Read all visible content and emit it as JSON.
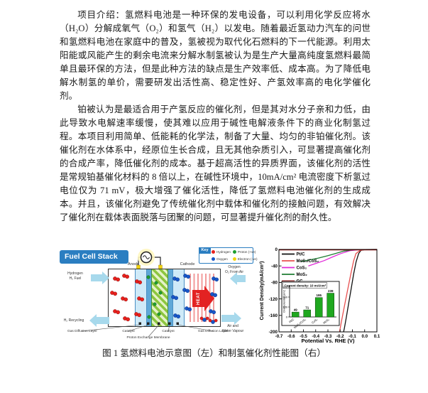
{
  "document": {
    "paragraphs": [
      "项目介绍：氢燃料电池是一种环保的发电设备，可以利用化学反应将水（H₂O）分解成氧气（O₂）和氢气（H₂）以发电。随着最近氢动力汽车的问世和氢燃料电池在家庭中的普及，氢被视为取代化石燃料的下一代能源。利用太阳能或风能产生的剩余电流来分解水制氢被认为是生产大量高纯度氢燃料最简单且最环保的方法，但是此种方法的缺点是生产效率低、成本高。为了降低电解水制氢的单价，需要研发出活性高、稳定性好、产氢效率高的电化学催化剂。",
      "铂被认为是最适合用于产氢反应的催化剂，但是其对水分子亲和力低，由此导致水电解速率缓慢，使其难以应用于碱性电解液条件下的商业化制氢过程。本项目利用简单、低能耗的化学法，制备了大量、均匀的非铂催化剂。该催化剂在水体系中，经原位生长合成，且无其他杂质引入，可显著提高催化剂的合成产率，降低催化剂的成本。基于超高活性的异质界面，该催化剂的活性是常规铂基催化材料的 8 倍以上，在碱性环境中，10mA/cm² 电流密度下析氢过电位仅为 71 mV，极大增强了催化活性，降低了氢燃料电池催化剂的生成成本。并且，该催化剂避免了传统催化剂中载体和催化剂的接触问题，有效解决了催化剂在载体表面脱落与团聚的问题，可显著提升催化剂的耐久性。"
    ],
    "caption": "图 1 氢燃料电池示意图（左）和制氢催化剂性能图（右）"
  },
  "diagram": {
    "title": "Fuel Cell Stack",
    "key_label": "Key",
    "key_items": [
      {
        "label": "Hydrogen",
        "color": "#e8211d"
      },
      {
        "label": "Oxygen",
        "color": "#1857c8"
      },
      {
        "label": "Proton (+ve)",
        "color": "#1e9e30"
      },
      {
        "label": "Electron (-ve)",
        "color": "#f2d410"
      }
    ],
    "labels": {
      "anode": "Anode",
      "cathode": "Cathode",
      "hydrogen_in_line1": "Hydrogen",
      "hydrogen_in_line2": "H₂ Fuel",
      "h2_recycling": "H₂ Recycling",
      "oxygen_in_line1": "Oxygen",
      "oxygen_in_line2": "O₂ From Air",
      "air_out_line1": "Air and",
      "air_out_line2": "Water Vapour",
      "heat": "HEAT",
      "gdl_left": "Gas Diffusion Layer",
      "catalyst_left": "Catalyst",
      "membrane": "Proton Exchange Membrane",
      "catalyst_right": "Catalyst",
      "gdl_right": "Gas Diffusion Layer"
    }
  },
  "chart_data": {
    "type": "line",
    "xlabel": "Potential Vs. RHE (V)",
    "ylabel": "Current Density(mA/cm²)",
    "xlim": [
      -0.7,
      0.1
    ],
    "ylim": [
      -200,
      0
    ],
    "x_tick_labels": [
      "-0.7",
      "-0.6",
      "-0.5",
      "-0.4",
      "-0.3",
      "-0.2",
      "-0.1",
      "0.0",
      "0.1"
    ],
    "y_tick_labels": [
      "0",
      "-40",
      "-80",
      "-120",
      "-160",
      "-200"
    ],
    "grid": false,
    "legend_position": "top-left",
    "series": [
      {
        "name": "Pt/C",
        "color": "#111111",
        "points": [
          [
            0.1,
            0
          ],
          [
            0,
            -0.3
          ],
          [
            -0.03,
            -2
          ],
          [
            -0.049,
            -10
          ],
          [
            -0.07,
            -30
          ],
          [
            -0.09,
            -60
          ],
          [
            -0.11,
            -95
          ],
          [
            -0.13,
            -130
          ],
          [
            -0.15,
            -165
          ],
          [
            -0.165,
            -190
          ],
          [
            -0.172,
            -200
          ]
        ]
      },
      {
        "name": "MoS₂/CoS₂",
        "color": "#e85050",
        "points": [
          [
            0.1,
            0
          ],
          [
            -0.01,
            -0.5
          ],
          [
            -0.04,
            -3
          ],
          [
            -0.071,
            -10
          ],
          [
            -0.09,
            -28
          ],
          [
            -0.11,
            -55
          ],
          [
            -0.13,
            -85
          ],
          [
            -0.16,
            -130
          ],
          [
            -0.19,
            -175
          ],
          [
            -0.205,
            -200
          ]
        ]
      },
      {
        "name": "CoS₂",
        "color": "#e02ad8",
        "points": [
          [
            -0.05,
            -0.5
          ],
          [
            -0.12,
            -3
          ],
          [
            -0.195,
            -10
          ],
          [
            -0.26,
            -18
          ],
          [
            -0.33,
            -27
          ],
          [
            -0.4,
            -34
          ],
          [
            -0.46,
            -40
          ]
        ]
      },
      {
        "name": "MoS₂",
        "color": "#1e7d32",
        "points": [
          [
            -0.09,
            -0.5
          ],
          [
            -0.17,
            -4
          ],
          [
            -0.239,
            -10
          ],
          [
            -0.3,
            -15
          ],
          [
            -0.38,
            -21
          ],
          [
            -0.46,
            -26
          ],
          [
            -0.52,
            -29
          ]
        ]
      },
      {
        "name": "GC",
        "color": "#9b1010",
        "points": [
          [
            -0.7,
            -1
          ],
          [
            0.1,
            -1
          ]
        ]
      }
    ],
    "inset": {
      "type": "bar",
      "title": "Current density: 10 mA/cm²",
      "ylabel": "Overpotential (mV)",
      "categories": [
        "Pt/C",
        "MoS₂/CoS₂",
        "CoS₂",
        "MoS₂"
      ],
      "values": [
        49,
        71,
        195,
        239
      ],
      "ylim": [
        0,
        300
      ],
      "y_ticks": [
        0,
        100,
        200,
        300
      ],
      "bar_color": "#1fa81f"
    }
  }
}
